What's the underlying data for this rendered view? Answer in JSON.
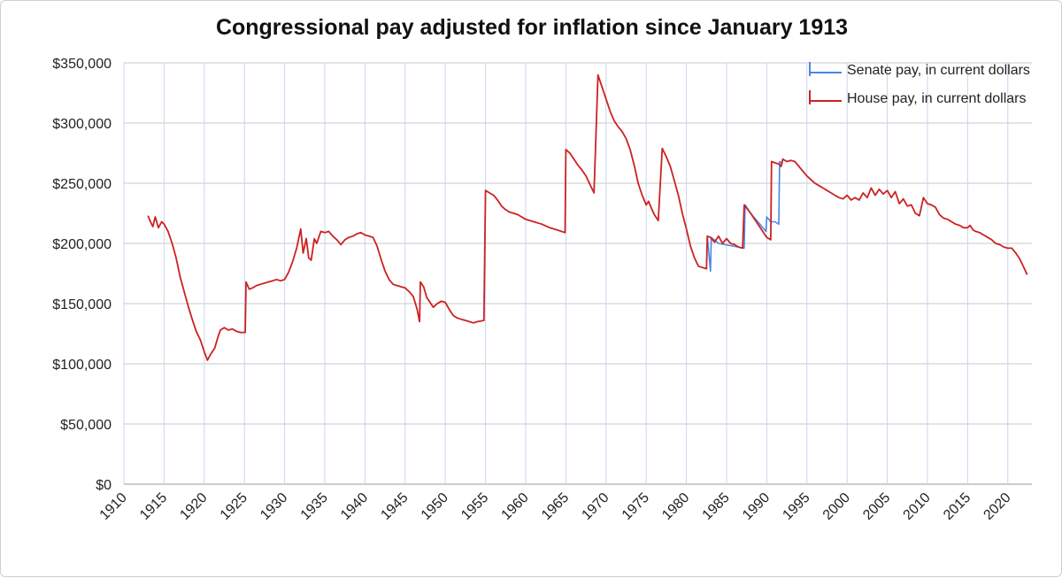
{
  "chart_data": {
    "type": "line",
    "title": "Congressional pay adjusted for inflation since January 1913",
    "xlabel": "",
    "ylabel": "",
    "xlim": [
      1910,
      2023
    ],
    "ylim": [
      0,
      350000
    ],
    "x_ticks": [
      "1910",
      "1915",
      "1920",
      "1925",
      "1930",
      "1935",
      "1940",
      "1945",
      "1950",
      "1955",
      "1960",
      "1965",
      "1970",
      "1975",
      "1980",
      "1985",
      "1990",
      "1995",
      "2000",
      "2005",
      "2010",
      "2015",
      "2020"
    ],
    "y_ticks": [
      "$0",
      "$50,000",
      "$100,000",
      "$150,000",
      "$200,000",
      "$250,000",
      "$300,000",
      "$350,000"
    ],
    "grid": true,
    "legend_position": "top-right",
    "series": [
      {
        "name": "Senate pay, in current dollars",
        "color": "#4a86e8",
        "points": [
          [
            1982.6,
            206000
          ],
          [
            1983.0,
            177000
          ],
          [
            1983.1,
            205000
          ],
          [
            1984,
            200000
          ],
          [
            1987.2,
            196000
          ],
          [
            1987.3,
            232000
          ],
          [
            1988,
            225000
          ],
          [
            1989.9,
            210000
          ],
          [
            1990.0,
            222000
          ],
          [
            1990.5,
            218000
          ],
          [
            1991.0,
            218000
          ],
          [
            1991.5,
            216000
          ],
          [
            1991.6,
            268000
          ],
          [
            1992,
            266000
          ]
        ]
      },
      {
        "name": "House pay, in current dollars",
        "color": "#cc2222",
        "points": [
          [
            1913.0,
            223000
          ],
          [
            1913.3,
            218000
          ],
          [
            1913.6,
            214000
          ],
          [
            1913.9,
            222000
          ],
          [
            1914.3,
            213000
          ],
          [
            1914.7,
            218000
          ],
          [
            1915.0,
            216000
          ],
          [
            1915.5,
            210000
          ],
          [
            1916.0,
            200000
          ],
          [
            1916.5,
            188000
          ],
          [
            1917.0,
            172000
          ],
          [
            1917.5,
            160000
          ],
          [
            1918.0,
            148000
          ],
          [
            1918.5,
            137000
          ],
          [
            1919.0,
            127000
          ],
          [
            1919.5,
            120000
          ],
          [
            1920.0,
            110000
          ],
          [
            1920.4,
            103000
          ],
          [
            1920.8,
            108000
          ],
          [
            1921.3,
            113000
          ],
          [
            1921.7,
            122000
          ],
          [
            1922.0,
            128000
          ],
          [
            1922.5,
            130000
          ],
          [
            1923.0,
            128000
          ],
          [
            1923.5,
            129000
          ],
          [
            1924.0,
            127000
          ],
          [
            1924.5,
            126000
          ],
          [
            1925.1,
            126000
          ],
          [
            1925.2,
            168000
          ],
          [
            1925.6,
            162000
          ],
          [
            1926.0,
            163000
          ],
          [
            1926.5,
            165000
          ],
          [
            1927.0,
            166000
          ],
          [
            1927.5,
            167000
          ],
          [
            1928.0,
            168000
          ],
          [
            1928.5,
            169000
          ],
          [
            1929.0,
            170000
          ],
          [
            1929.5,
            169000
          ],
          [
            1930.0,
            170000
          ],
          [
            1930.5,
            176000
          ],
          [
            1931.0,
            185000
          ],
          [
            1931.5,
            196000
          ],
          [
            1932.0,
            212000
          ],
          [
            1932.3,
            192000
          ],
          [
            1932.7,
            204000
          ],
          [
            1933.0,
            188000
          ],
          [
            1933.3,
            186000
          ],
          [
            1933.7,
            204000
          ],
          [
            1934.0,
            200000
          ],
          [
            1934.5,
            210000
          ],
          [
            1935.0,
            209000
          ],
          [
            1935.5,
            210000
          ],
          [
            1936.0,
            206000
          ],
          [
            1936.5,
            203000
          ],
          [
            1937.0,
            199000
          ],
          [
            1937.5,
            203000
          ],
          [
            1938.0,
            205000
          ],
          [
            1938.5,
            206000
          ],
          [
            1939.0,
            208000
          ],
          [
            1939.5,
            209000
          ],
          [
            1940.0,
            207000
          ],
          [
            1940.5,
            206000
          ],
          [
            1941.0,
            205000
          ],
          [
            1941.5,
            198000
          ],
          [
            1942.0,
            187000
          ],
          [
            1942.5,
            177000
          ],
          [
            1943.0,
            170000
          ],
          [
            1943.5,
            166000
          ],
          [
            1944.0,
            165000
          ],
          [
            1944.5,
            164000
          ],
          [
            1945.0,
            163000
          ],
          [
            1945.5,
            160000
          ],
          [
            1946.0,
            156000
          ],
          [
            1946.5,
            145000
          ],
          [
            1946.8,
            135000
          ],
          [
            1946.9,
            168000
          ],
          [
            1947.3,
            164000
          ],
          [
            1947.7,
            155000
          ],
          [
            1948.0,
            152000
          ],
          [
            1948.5,
            147000
          ],
          [
            1949.0,
            150000
          ],
          [
            1949.5,
            152000
          ],
          [
            1950.0,
            151000
          ],
          [
            1950.5,
            145000
          ],
          [
            1951.0,
            140000
          ],
          [
            1951.5,
            138000
          ],
          [
            1952.0,
            137000
          ],
          [
            1952.5,
            136000
          ],
          [
            1953.0,
            135000
          ],
          [
            1953.5,
            134000
          ],
          [
            1954.0,
            135000
          ],
          [
            1954.8,
            136000
          ],
          [
            1955.0,
            244000
          ],
          [
            1955.5,
            242000
          ],
          [
            1956.0,
            240000
          ],
          [
            1956.5,
            236000
          ],
          [
            1957.0,
            231000
          ],
          [
            1957.5,
            228000
          ],
          [
            1958.0,
            226000
          ],
          [
            1958.5,
            225000
          ],
          [
            1959.0,
            224000
          ],
          [
            1960.0,
            220000
          ],
          [
            1961.0,
            218000
          ],
          [
            1962.0,
            216000
          ],
          [
            1963.0,
            213000
          ],
          [
            1964.0,
            211000
          ],
          [
            1964.9,
            209000
          ],
          [
            1965.0,
            278000
          ],
          [
            1965.5,
            275000
          ],
          [
            1966.0,
            270000
          ],
          [
            1966.5,
            265000
          ],
          [
            1967.0,
            261000
          ],
          [
            1967.5,
            256000
          ],
          [
            1968.0,
            249000
          ],
          [
            1968.5,
            242000
          ],
          [
            1969.0,
            340000
          ],
          [
            1969.5,
            330000
          ],
          [
            1970.0,
            320000
          ],
          [
            1970.5,
            310000
          ],
          [
            1971.0,
            302000
          ],
          [
            1971.5,
            297000
          ],
          [
            1972.0,
            293000
          ],
          [
            1972.5,
            287000
          ],
          [
            1973.0,
            278000
          ],
          [
            1973.5,
            265000
          ],
          [
            1974.0,
            250000
          ],
          [
            1974.5,
            240000
          ],
          [
            1975.0,
            232000
          ],
          [
            1975.3,
            235000
          ],
          [
            1975.6,
            230000
          ],
          [
            1976.0,
            224000
          ],
          [
            1976.5,
            219000
          ],
          [
            1977.0,
            279000
          ],
          [
            1977.5,
            272000
          ],
          [
            1978.0,
            264000
          ],
          [
            1978.5,
            252000
          ],
          [
            1979.0,
            240000
          ],
          [
            1979.5,
            225000
          ],
          [
            1980.0,
            212000
          ],
          [
            1980.5,
            198000
          ],
          [
            1981.0,
            188000
          ],
          [
            1981.5,
            181000
          ],
          [
            1982.0,
            180000
          ],
          [
            1982.5,
            179000
          ],
          [
            1982.6,
            206000
          ],
          [
            1983.0,
            205000
          ],
          [
            1983.5,
            201000
          ],
          [
            1984.0,
            206000
          ],
          [
            1984.5,
            200000
          ],
          [
            1985.0,
            204000
          ],
          [
            1985.5,
            200000
          ],
          [
            1986.0,
            199000
          ],
          [
            1986.5,
            197000
          ],
          [
            1987.0,
            196000
          ],
          [
            1987.2,
            232000
          ],
          [
            1988.0,
            225000
          ],
          [
            1989.0,
            215000
          ],
          [
            1990.0,
            205000
          ],
          [
            1990.5,
            203000
          ],
          [
            1990.6,
            268000
          ],
          [
            1991.0,
            267000
          ],
          [
            1991.5,
            266000
          ],
          [
            1991.8,
            264000
          ],
          [
            1992.0,
            270000
          ],
          [
            1992.5,
            268000
          ],
          [
            1993.0,
            269000
          ],
          [
            1993.5,
            268000
          ],
          [
            1994.0,
            264000
          ],
          [
            1994.5,
            260000
          ],
          [
            1995.0,
            256000
          ],
          [
            1995.5,
            253000
          ],
          [
            1996.0,
            250000
          ],
          [
            1996.5,
            248000
          ],
          [
            1997.0,
            246000
          ],
          [
            1997.5,
            244000
          ],
          [
            1998.0,
            242000
          ],
          [
            1998.5,
            240000
          ],
          [
            1999.0,
            238000
          ],
          [
            1999.5,
            237000
          ],
          [
            2000.0,
            240000
          ],
          [
            2000.5,
            236000
          ],
          [
            2001.0,
            238000
          ],
          [
            2001.5,
            236000
          ],
          [
            2002.0,
            242000
          ],
          [
            2002.5,
            238000
          ],
          [
            2003.0,
            246000
          ],
          [
            2003.5,
            240000
          ],
          [
            2004.0,
            245000
          ],
          [
            2004.5,
            241000
          ],
          [
            2005.0,
            244000
          ],
          [
            2005.5,
            238000
          ],
          [
            2006.0,
            243000
          ],
          [
            2006.5,
            233000
          ],
          [
            2007.0,
            237000
          ],
          [
            2007.5,
            231000
          ],
          [
            2008.0,
            232000
          ],
          [
            2008.5,
            225000
          ],
          [
            2009.0,
            223000
          ],
          [
            2009.5,
            238000
          ],
          [
            2010.0,
            233000
          ],
          [
            2010.5,
            232000
          ],
          [
            2011.0,
            230000
          ],
          [
            2011.5,
            224000
          ],
          [
            2012.0,
            221000
          ],
          [
            2012.5,
            220000
          ],
          [
            2013.0,
            218000
          ],
          [
            2013.5,
            216000
          ],
          [
            2014.0,
            215000
          ],
          [
            2014.5,
            213000
          ],
          [
            2015.0,
            213000
          ],
          [
            2015.3,
            215000
          ],
          [
            2015.7,
            211000
          ],
          [
            2016.0,
            210000
          ],
          [
            2016.5,
            209000
          ],
          [
            2017.0,
            207000
          ],
          [
            2017.5,
            205000
          ],
          [
            2018.0,
            203000
          ],
          [
            2018.5,
            200000
          ],
          [
            2019.0,
            199000
          ],
          [
            2019.5,
            197000
          ],
          [
            2020.0,
            196000
          ],
          [
            2020.5,
            196000
          ],
          [
            2021.0,
            192000
          ],
          [
            2021.5,
            187000
          ],
          [
            2022.0,
            180000
          ],
          [
            2022.4,
            174000
          ]
        ]
      }
    ]
  }
}
